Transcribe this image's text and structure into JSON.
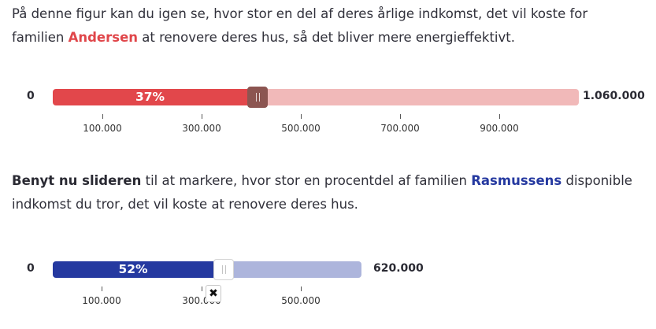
{
  "paragraph1": {
    "text_a": "På denne figur kan du igen se, hvor stor en del af deres årlige indkomst, det vil koste for familien ",
    "name": "Andersen",
    "text_b": " at renovere deres hus, så det bliver mere energieffektivt."
  },
  "slider1": {
    "min_label": "0",
    "max_label": "1.060.000",
    "percent_label": "37%",
    "value_fraction": 0.37,
    "fill_color": "#e2474b",
    "rest_color": "#f1b9b9",
    "handle_color": "#8c5551",
    "ticks": [
      "100.000",
      "300.000",
      "500.000",
      "700.000",
      "900.000"
    ]
  },
  "paragraph2": {
    "lead": "Benyt nu slideren",
    "text_a": " til at markere, hvor stor en procentdel af familien ",
    "name": "Rasmussens",
    "text_b": " disponible indkomst du tror, det vil koste at renovere deres hus."
  },
  "slider2": {
    "min_label": "0",
    "max_label": "620.000",
    "percent_label": "52%",
    "value_fraction": 0.52,
    "fill_color": "#2539a0",
    "rest_color": "#adb5dc",
    "handle_color": "#ffffff",
    "ticks": [
      "100.000",
      "300.000",
      "500.000"
    ],
    "close_symbol": "✖"
  }
}
